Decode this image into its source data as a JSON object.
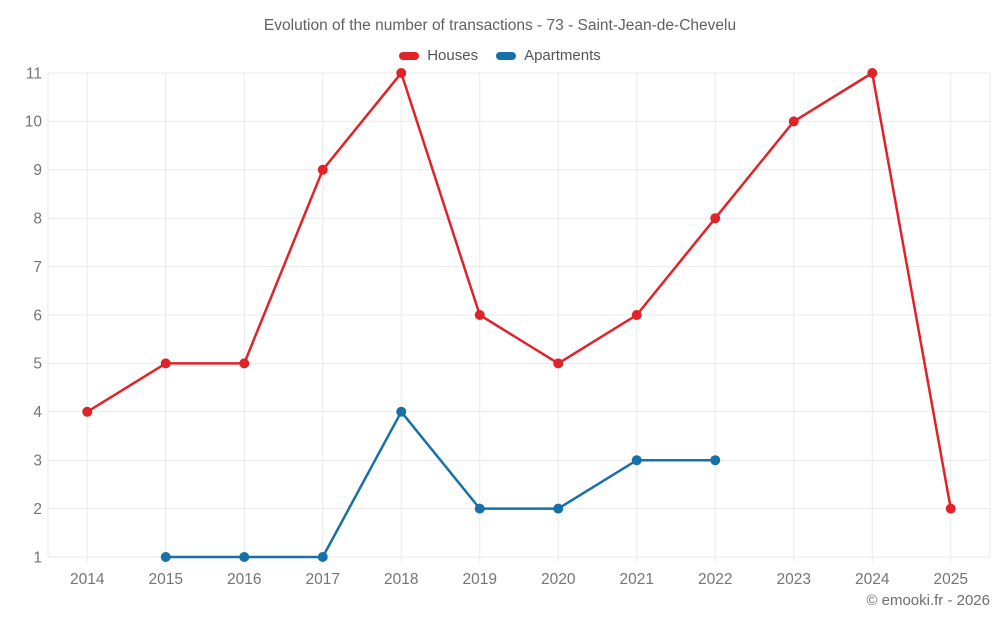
{
  "header": {
    "title": "Evolution of the number of transactions - 73 - Saint-Jean-de-Chevelu"
  },
  "legend": [
    {
      "label": "Houses",
      "color": "#e02229"
    },
    {
      "label": "Apartments",
      "color": "#1771a8"
    }
  ],
  "footer": {
    "attribution": "© emooki.fr - 2026"
  },
  "colors": {
    "houses": "#e02229",
    "apartments": "#1771a8",
    "gridline": "#e9e9e9",
    "axis_text": "#757575",
    "title_text": "#616161",
    "attribution_text": "#6e6e6e"
  },
  "chart_data": {
    "type": "line",
    "title": "Evolution of the number of transactions - 73 - Saint-Jean-de-Chevelu",
    "categories": [
      "2014",
      "2015",
      "2016",
      "2017",
      "2018",
      "2019",
      "2020",
      "2021",
      "2022",
      "2023",
      "2024",
      "2025"
    ],
    "series": [
      {
        "name": "Houses",
        "color": "#e02229",
        "values": [
          4,
          5,
          5,
          9,
          11,
          6,
          5,
          6,
          8,
          10,
          11,
          2
        ]
      },
      {
        "name": "Apartments",
        "color": "#1771a8",
        "values": [
          null,
          1,
          1,
          1,
          4,
          2,
          2,
          3,
          3,
          null,
          null,
          null
        ]
      }
    ],
    "xlabel": "",
    "ylabel": "",
    "ylim": [
      1,
      11
    ],
    "ytick_step": 1,
    "grid": true,
    "legend_position": "top",
    "marker_radius": 5,
    "line_width": 2.5
  }
}
